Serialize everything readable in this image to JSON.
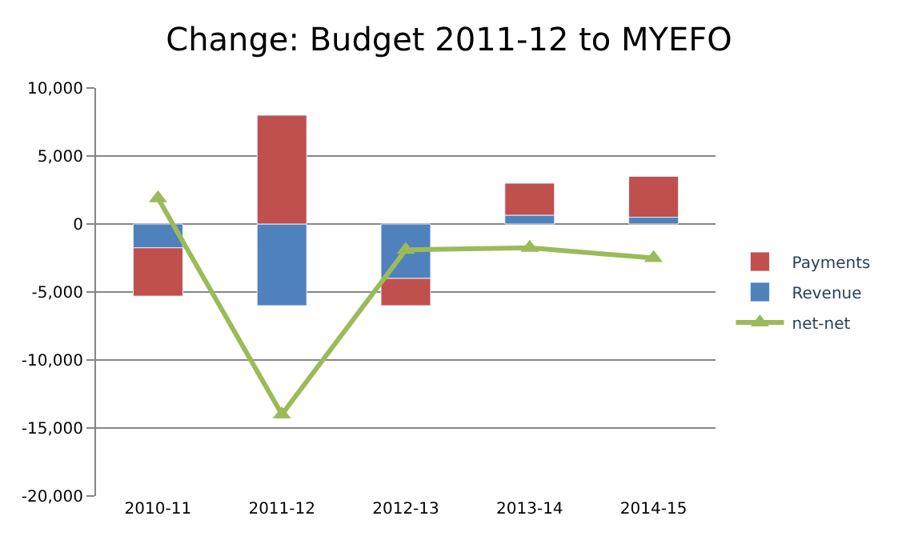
{
  "chart_data": {
    "type": "bar",
    "title": "Change: Budget 2011-12 to MYEFO",
    "stacked": true,
    "categories": [
      "2010-11",
      "2011-12",
      "2012-13",
      "2013-14",
      "2014-15"
    ],
    "series": [
      {
        "name": "Revenue",
        "color": "#4f81bd",
        "values": [
          -1750,
          -6000,
          -4000,
          650,
          500
        ]
      },
      {
        "name": "Payments",
        "color": "#c0504d",
        "values": [
          -3550,
          8000,
          -2000,
          2350,
          3000
        ]
      },
      {
        "name": "net-net",
        "type": "line",
        "color": "#9bbb59",
        "marker": "triangle",
        "values": [
          1900,
          -14000,
          -1900,
          -1750,
          -2500
        ]
      }
    ],
    "ylim": [
      -20000,
      10000
    ],
    "yticks": [
      {
        "value": -20000,
        "label": "-20,000"
      },
      {
        "value": -15000,
        "label": "-15,000"
      },
      {
        "value": -10000,
        "label": "-10,000"
      },
      {
        "value": -5000,
        "label": "-5,000"
      },
      0,
      {
        "value": 5000,
        "label": "5,000"
      },
      {
        "value": 10000,
        "label": "10,000"
      }
    ],
    "grid": "y",
    "legend": "right"
  }
}
